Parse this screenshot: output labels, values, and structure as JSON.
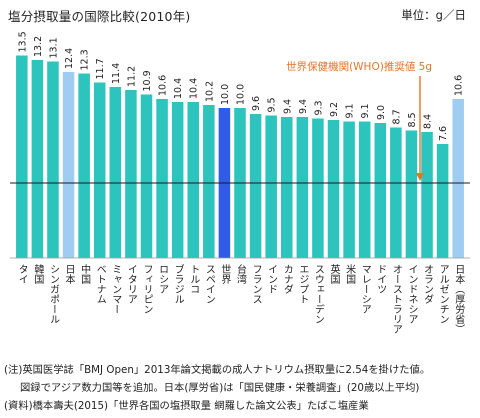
{
  "header": {
    "title": "塩分摂取量の国際比較(2010年)",
    "unit": "単位：g／日"
  },
  "annotation": {
    "who_label": "世界保健機関(WHO)推奨値 5g",
    "who_value": 5
  },
  "chart_data": {
    "type": "bar",
    "title": "塩分摂取量の国際比較(2010年)",
    "ylabel": "",
    "xlabel": "",
    "ylim": [
      0,
      14
    ],
    "grid": false,
    "categories": [
      "タイ",
      "韓国",
      "シンガポール",
      "日本",
      "中国",
      "ベトナム",
      "ミャンマー",
      "イタリア",
      "フィリピン",
      "ロシア",
      "ブラジル",
      "トルコ",
      "スペイン",
      "世界",
      "台湾",
      "フランス",
      "インド",
      "カナダ",
      "エジプト",
      "スウェーデン",
      "英国",
      "米国",
      "マレーシア",
      "ドイツ",
      "オーストラリア",
      "インドネシア",
      "オランダ",
      "アルゼンチン",
      "日本（厚労省）"
    ],
    "values": [
      13.5,
      13.2,
      13.1,
      12.4,
      12.3,
      11.7,
      11.4,
      11.2,
      10.9,
      10.6,
      10.4,
      10.4,
      10.2,
      10.0,
      10.0,
      9.6,
      9.5,
      9.4,
      9.4,
      9.3,
      9.2,
      9.1,
      9.1,
      9.0,
      8.7,
      8.5,
      8.4,
      7.6,
      10.6
    ],
    "value_labels": [
      "13.5",
      "13.2",
      "13.1",
      "12.4",
      "12.3",
      "11.7",
      "11.4",
      "11.2",
      "10.9",
      "10.6",
      "10.4",
      "10.4",
      "10.2",
      "10.0",
      "10.0",
      "9.6",
      "9.5",
      "9.4",
      "9.4",
      "9.3",
      "9.2",
      "9.1",
      "9.1",
      "9.0",
      "8.7",
      "8.5",
      "8.4",
      "7.6",
      "10.6"
    ],
    "bar_colors": {
      "default": "#2ec4be",
      "highlight": "#9fcdf2",
      "world": "#2f5ce6"
    },
    "highlight_categories": [
      "日本",
      "日本（厚労省）"
    ],
    "world_category": "世界",
    "reference_line": {
      "value": 5,
      "color": "#1a1a1a"
    },
    "annotation_color": "#e8742a"
  },
  "notes": {
    "line1": "(注)英国医学誌「BMJ Open」2013年論文掲載の成人ナトリウム摂取量に2.54を掛けた値。",
    "line2": "図録でアジア数力国等を追加。日本(厚労省)は「国民健康・栄養調査」(20歳以上平均)",
    "line3": "(資料)橋本壽夫(2015)「世界各国の塩摂取量 網羅した論文公表」たばこ塩産業"
  }
}
